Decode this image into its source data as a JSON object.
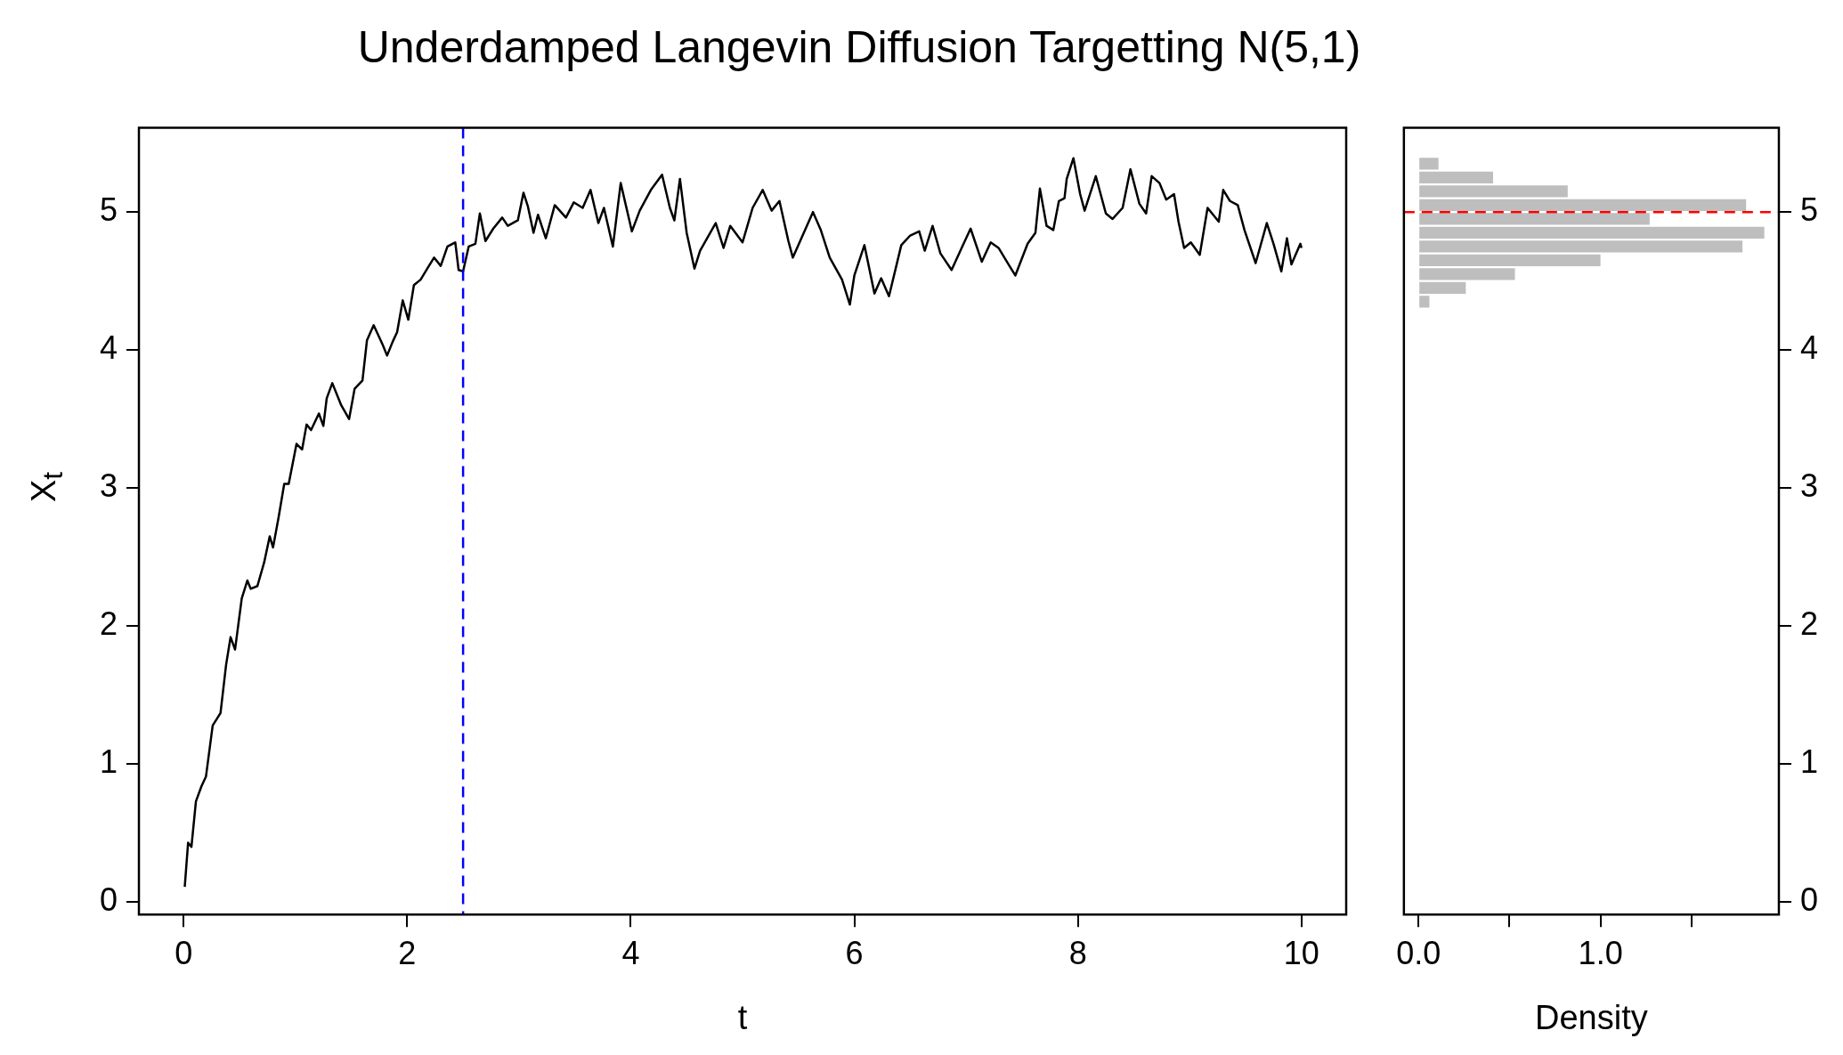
{
  "chart_data": [
    {
      "type": "line",
      "title": "Underdamped Langevin Diffusion Targetting N(5,1)",
      "xlabel": "t",
      "ylabel": "X$_{t}$",
      "x": [
        0.01,
        0.04,
        0.07,
        0.11,
        0.16,
        0.2,
        0.26,
        0.33,
        0.38,
        0.42,
        0.46,
        0.52,
        0.57,
        0.6,
        0.66,
        0.72,
        0.77,
        0.8,
        0.85,
        0.9,
        0.94,
        1.01,
        1.06,
        1.1,
        1.14,
        1.21,
        1.25,
        1.28,
        1.33,
        1.41,
        1.48,
        1.53,
        1.6,
        1.64,
        1.7,
        1.78,
        1.82,
        1.87,
        1.91,
        1.96,
        2.01,
        2.06,
        2.12,
        2.18,
        2.24,
        2.3,
        2.36,
        2.43,
        2.46,
        2.5,
        2.55,
        2.61,
        2.65,
        2.7,
        2.77,
        2.85,
        2.9,
        2.99,
        3.04,
        3.08,
        3.13,
        3.17,
        3.24,
        3.32,
        3.42,
        3.49,
        3.57,
        3.64,
        3.71,
        3.76,
        3.84,
        3.91,
        4.01,
        4.08,
        4.18,
        4.28,
        4.35,
        4.39,
        4.44,
        4.5,
        4.57,
        4.62,
        4.76,
        4.83,
        4.89,
        5.0,
        5.09,
        5.18,
        5.26,
        5.33,
        5.41,
        5.45,
        5.51,
        5.63,
        5.7,
        5.78,
        5.89,
        5.96,
        6.0,
        6.09,
        6.18,
        6.24,
        6.31,
        6.42,
        6.5,
        6.58,
        6.63,
        6.7,
        6.77,
        6.87,
        6.96,
        7.04,
        7.14,
        7.22,
        7.29,
        7.38,
        7.44,
        7.55,
        7.62,
        7.66,
        7.72,
        7.78,
        7.83,
        7.88,
        7.9,
        7.96,
        8.02,
        8.06,
        8.16,
        8.25,
        8.31,
        8.4,
        8.47,
        8.55,
        8.61,
        8.66,
        8.73,
        8.79,
        8.86,
        8.9,
        8.95,
        9.01,
        9.09,
        9.16,
        9.26,
        9.3,
        9.36,
        9.43,
        9.49,
        9.59,
        9.69,
        9.75,
        9.82,
        9.87,
        9.91,
        9.99,
        10.0
      ],
      "series": [
        {
          "color": "#000000",
          "values": [
            0.11,
            0.43,
            0.4,
            0.73,
            0.84,
            0.91,
            1.28,
            1.37,
            1.72,
            1.92,
            1.83,
            2.2,
            2.33,
            2.27,
            2.29,
            2.46,
            2.65,
            2.57,
            2.79,
            3.03,
            3.03,
            3.32,
            3.28,
            3.46,
            3.42,
            3.54,
            3.45,
            3.65,
            3.76,
            3.6,
            3.5,
            3.72,
            3.78,
            4.07,
            4.18,
            4.04,
            3.96,
            4.06,
            4.13,
            4.36,
            4.22,
            4.47,
            4.51,
            4.59,
            4.67,
            4.61,
            4.75,
            4.78,
            4.58,
            4.57,
            4.75,
            4.77,
            4.99,
            4.79,
            4.88,
            4.96,
            4.9,
            4.94,
            5.14,
            5.04,
            4.85,
            4.98,
            4.81,
            5.05,
            4.96,
            5.07,
            5.03,
            5.16,
            4.92,
            5.03,
            4.75,
            5.21,
            4.86,
            5.01,
            5.16,
            5.27,
            5.03,
            4.94,
            5.24,
            4.85,
            4.59,
            4.72,
            4.92,
            4.74,
            4.9,
            4.78,
            5.03,
            5.16,
            5.01,
            5.08,
            4.79,
            4.67,
            4.78,
            5.0,
            4.87,
            4.67,
            4.51,
            4.33,
            4.54,
            4.76,
            4.41,
            4.52,
            4.39,
            4.76,
            4.83,
            4.86,
            4.72,
            4.9,
            4.7,
            4.58,
            4.74,
            4.88,
            4.64,
            4.78,
            4.74,
            4.62,
            4.54,
            4.77,
            4.85,
            5.17,
            4.9,
            4.87,
            5.08,
            5.1,
            5.24,
            5.39,
            5.13,
            5.01,
            5.26,
            4.99,
            4.95,
            5.03,
            5.31,
            5.06,
            4.99,
            5.26,
            5.21,
            5.09,
            5.13,
            4.93,
            4.74,
            4.78,
            4.69,
            5.03,
            4.93,
            5.16,
            5.08,
            5.05,
            4.87,
            4.63,
            4.92,
            4.77,
            4.57,
            4.81,
            4.62,
            4.77,
            4.74
          ]
        }
      ],
      "xlim": [
        -0.4,
        10.4
      ],
      "xticks": [
        0,
        2,
        4,
        6,
        8,
        10
      ],
      "ylim": [
        -0.09,
        5.61
      ],
      "yticks": [
        0,
        1,
        2,
        3,
        4,
        5
      ],
      "grid": false,
      "legend": false,
      "line_style": "solid",
      "marker": "none",
      "ref_lines": [
        {
          "axis": "x",
          "value": 2.5,
          "label": null,
          "color": "#0000ff",
          "line_style": "dashed"
        }
      ]
    },
    {
      "type": "histogram",
      "orientation": "horizontal",
      "xlabel": "Density",
      "bins": [
        4.3,
        4.4,
        4.5,
        4.6,
        4.7,
        4.8,
        4.9,
        5.0,
        5.1,
        5.2,
        5.3,
        5.4
      ],
      "values": [
        0.06,
        0.26,
        0.53,
        1.0,
        1.78,
        1.9,
        1.27,
        1.8,
        0.82,
        0.41,
        0.11
      ],
      "color": "#bebebe",
      "xlim": [
        -0.08,
        1.98
      ],
      "xticks": [
        {
          "value": 0,
          "label": "0.0"
        },
        {
          "value": 0.5,
          "label": null
        },
        {
          "value": 1,
          "label": "1.0"
        },
        {
          "value": 1.5,
          "label": null
        }
      ],
      "ylim": [
        -0.09,
        5.61
      ],
      "yticks": [
        0,
        1,
        2,
        3,
        4,
        5
      ],
      "grid": false,
      "legend": false,
      "ref_lines": [
        {
          "axis": "y",
          "value": 5,
          "label": null,
          "color": "#ff0000",
          "line_style": "dashed"
        }
      ]
    }
  ]
}
